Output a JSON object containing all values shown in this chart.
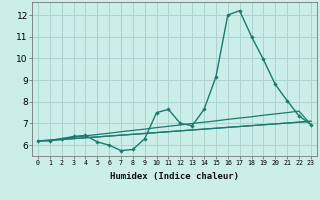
{
  "xlabel": "Humidex (Indice chaleur)",
  "background_color": "#cceee8",
  "grid_color": "#aad4ce",
  "line_color": "#1a7a6e",
  "xlim": [
    -0.5,
    23.5
  ],
  "ylim": [
    5.5,
    12.6
  ],
  "xticks": [
    0,
    1,
    2,
    3,
    4,
    5,
    6,
    7,
    8,
    9,
    10,
    11,
    12,
    13,
    14,
    15,
    16,
    17,
    18,
    19,
    20,
    21,
    22,
    23
  ],
  "yticks": [
    6,
    7,
    8,
    9,
    10,
    11,
    12
  ],
  "series": [
    [
      6.2,
      6.2,
      6.3,
      6.4,
      6.45,
      6.15,
      6.0,
      5.75,
      5.8,
      6.3,
      7.5,
      7.65,
      7.0,
      6.9,
      7.65,
      9.15,
      12.0,
      12.2,
      11.0,
      9.95,
      8.8,
      8.05,
      7.35,
      6.95
    ],
    [
      6.2,
      6.23,
      6.3,
      6.36,
      6.43,
      6.49,
      6.55,
      6.62,
      6.68,
      6.74,
      6.81,
      6.87,
      6.93,
      7.0,
      7.06,
      7.12,
      7.19,
      7.25,
      7.31,
      7.38,
      7.44,
      7.5,
      7.57,
      6.95
    ],
    [
      6.2,
      6.22,
      6.26,
      6.3,
      6.34,
      6.38,
      6.42,
      6.46,
      6.5,
      6.54,
      6.58,
      6.62,
      6.66,
      6.7,
      6.74,
      6.78,
      6.82,
      6.86,
      6.9,
      6.94,
      6.98,
      7.02,
      7.06,
      7.1
    ],
    [
      6.2,
      6.22,
      6.26,
      6.3,
      6.34,
      6.38,
      6.42,
      6.46,
      6.5,
      6.54,
      6.58,
      6.62,
      6.66,
      6.7,
      6.74,
      6.78,
      6.82,
      6.86,
      6.9,
      6.94,
      6.98,
      7.02,
      7.06,
      7.1
    ]
  ]
}
